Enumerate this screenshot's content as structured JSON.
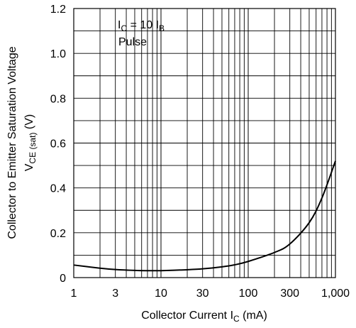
{
  "chart_data": {
    "type": "line",
    "x_scale": "log",
    "xlim": [
      1,
      1000
    ],
    "ylim": [
      0,
      1.2
    ],
    "x_ticks": [
      1,
      3,
      10,
      30,
      100,
      300,
      1000
    ],
    "x_tick_labels": [
      "1",
      "3",
      "10",
      "30",
      "100",
      "300",
      "1,000"
    ],
    "y_ticks": [
      0,
      0.2,
      0.4,
      0.6,
      0.8,
      1.0,
      1.2
    ],
    "y_tick_labels": [
      "0",
      "0.2",
      "0.4",
      "0.6",
      "0.8",
      "1.0",
      "1.2"
    ],
    "grid": true,
    "xlabel": {
      "main": "Collector Current  I",
      "sub": "C",
      "unit": "  (mA)"
    },
    "ylabel": {
      "line1": "Collector to Emitter Saturation Voltage",
      "line2_main": "V",
      "line2_sub": "CE (sat)",
      "line2_unit": "  (V)"
    },
    "annotations": {
      "condition_main": "I",
      "condition_sub1": "C",
      "condition_mid": " = 10 I",
      "condition_sub2": "B",
      "mode": "Pulse"
    },
    "series": [
      {
        "x": [
          1,
          2,
          3,
          5,
          7,
          10,
          20,
          30,
          50,
          70,
          100,
          200,
          300,
          500,
          700,
          1000
        ],
        "y": [
          0.056,
          0.042,
          0.036,
          0.032,
          0.031,
          0.031,
          0.035,
          0.039,
          0.048,
          0.057,
          0.072,
          0.112,
          0.15,
          0.245,
          0.355,
          0.52
        ]
      }
    ]
  }
}
